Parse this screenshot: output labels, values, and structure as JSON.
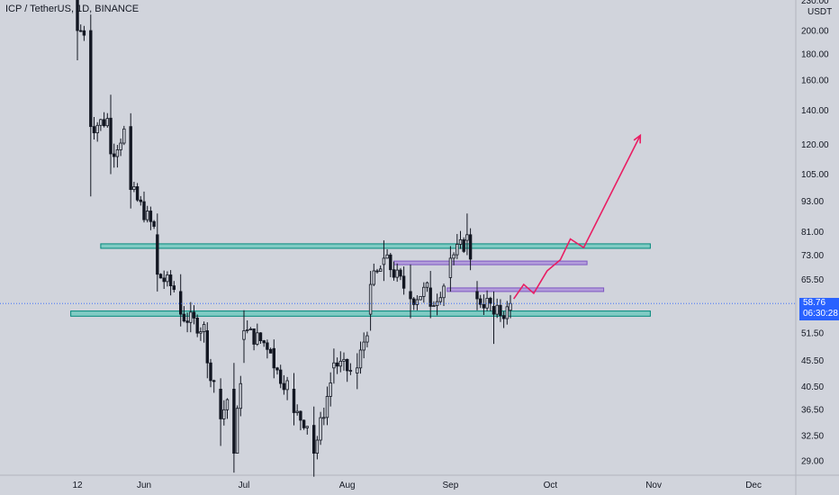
{
  "header": {
    "title": "ICP / TetherUS, 1D, BINANCE"
  },
  "price_axis": {
    "unit": "USDT",
    "ticks": [
      "230.00",
      "200.00",
      "180.00",
      "160.00",
      "140.00",
      "120.00",
      "105.00",
      "93.00",
      "81.00",
      "73.00",
      "65.50",
      "51.50",
      "45.50",
      "40.50",
      "36.50",
      "32.50",
      "29.00"
    ],
    "tick_values": [
      230,
      200,
      180,
      160,
      140,
      120,
      105,
      93,
      81,
      73,
      65.5,
      51.5,
      45.5,
      40.5,
      36.5,
      32.5,
      29
    ],
    "current_price": "58.76",
    "countdown": "06:30:28"
  },
  "time_axis": {
    "labels": [
      "12",
      "Jun",
      "Jul",
      "Aug",
      "Sep",
      "Oct",
      "Nov",
      "Dec"
    ]
  },
  "colors": {
    "background": "#d1d4dc",
    "candle": "#131722",
    "support_zone_fill": "#80cbc4",
    "support_zone_stroke": "#00897b",
    "resistance_line": "#7e57c2",
    "projection": "#e91e63",
    "price_line": "#2962ff"
  },
  "chart_data": {
    "type": "candlestick",
    "symbol": "ICP / TetherUS",
    "interval": "1D",
    "exchange": "BINANCE",
    "y_scale": "log",
    "ylim": [
      27,
      240
    ],
    "x_range": [
      "2021-05-10",
      "2021-12-20"
    ],
    "candles_approx": [
      {
        "date": "2021-05-12",
        "o": 230,
        "h": 250,
        "l": 175,
        "c": 200
      },
      {
        "date": "2021-05-16",
        "o": 200,
        "h": 215,
        "l": 95,
        "c": 130
      },
      {
        "date": "2021-05-22",
        "o": 135,
        "h": 150,
        "l": 105,
        "c": 115
      },
      {
        "date": "2021-05-28",
        "o": 130,
        "h": 138,
        "l": 90,
        "c": 98
      },
      {
        "date": "2021-06-05",
        "o": 80,
        "h": 88,
        "l": 62,
        "c": 67
      },
      {
        "date": "2021-06-12",
        "o": 62,
        "h": 67,
        "l": 53,
        "c": 56
      },
      {
        "date": "2021-06-20",
        "o": 52,
        "h": 54,
        "l": 42,
        "c": 45
      },
      {
        "date": "2021-06-24",
        "o": 40,
        "h": 42,
        "l": 31,
        "c": 35
      },
      {
        "date": "2021-06-28",
        "o": 40,
        "h": 45,
        "l": 27.5,
        "c": 30
      },
      {
        "date": "2021-07-01",
        "o": 50,
        "h": 57,
        "l": 45,
        "c": 52
      },
      {
        "date": "2021-07-10",
        "o": 48,
        "h": 50,
        "l": 42,
        "c": 44
      },
      {
        "date": "2021-07-16",
        "o": 40,
        "h": 43,
        "l": 34,
        "c": 36
      },
      {
        "date": "2021-07-22",
        "o": 34,
        "h": 37,
        "l": 27,
        "c": 30
      },
      {
        "date": "2021-07-28",
        "o": 44,
        "h": 48,
        "l": 41,
        "c": 45
      },
      {
        "date": "2021-08-04",
        "o": 43,
        "h": 47,
        "l": 40,
        "c": 44
      },
      {
        "date": "2021-08-08",
        "o": 56,
        "h": 68,
        "l": 52,
        "c": 64
      },
      {
        "date": "2021-08-12",
        "o": 70,
        "h": 78,
        "l": 65,
        "c": 72
      },
      {
        "date": "2021-08-20",
        "o": 62,
        "h": 70,
        "l": 55,
        "c": 60
      },
      {
        "date": "2021-08-26",
        "o": 63,
        "h": 68,
        "l": 55,
        "c": 58
      },
      {
        "date": "2021-09-01",
        "o": 66,
        "h": 76,
        "l": 62,
        "c": 72
      },
      {
        "date": "2021-09-06",
        "o": 78,
        "h": 88,
        "l": 73,
        "c": 80
      },
      {
        "date": "2021-09-09",
        "o": 62,
        "h": 65,
        "l": 57,
        "c": 60
      },
      {
        "date": "2021-09-14",
        "o": 58,
        "h": 62,
        "l": 49,
        "c": 56
      },
      {
        "date": "2021-09-19",
        "o": 57,
        "h": 61,
        "l": 55,
        "c": 58.76
      }
    ],
    "zones": [
      {
        "name": "upper",
        "price_low": 75.5,
        "price_high": 76.8,
        "from": "2021-05-19",
        "to": "2021-10-31"
      },
      {
        "name": "lower",
        "price_low": 55.5,
        "price_high": 56.8,
        "from": "2021-05-10",
        "to": "2021-10-31"
      }
    ],
    "levels": [
      {
        "price": 70.5,
        "from": "2021-08-15",
        "to": "2021-10-12"
      },
      {
        "price": 62.5,
        "from": "2021-08-31",
        "to": "2021-10-17"
      }
    ],
    "projection_path": [
      {
        "date": "2021-09-20",
        "price": 60
      },
      {
        "date": "2021-09-23",
        "price": 64
      },
      {
        "date": "2021-09-26",
        "price": 61.5
      },
      {
        "date": "2021-09-30",
        "price": 68
      },
      {
        "date": "2021-10-04",
        "price": 71.5
      },
      {
        "date": "2021-10-07",
        "price": 78.5
      },
      {
        "date": "2021-10-11",
        "price": 75.5
      },
      {
        "date": "2021-10-28",
        "price": 125
      }
    ]
  }
}
